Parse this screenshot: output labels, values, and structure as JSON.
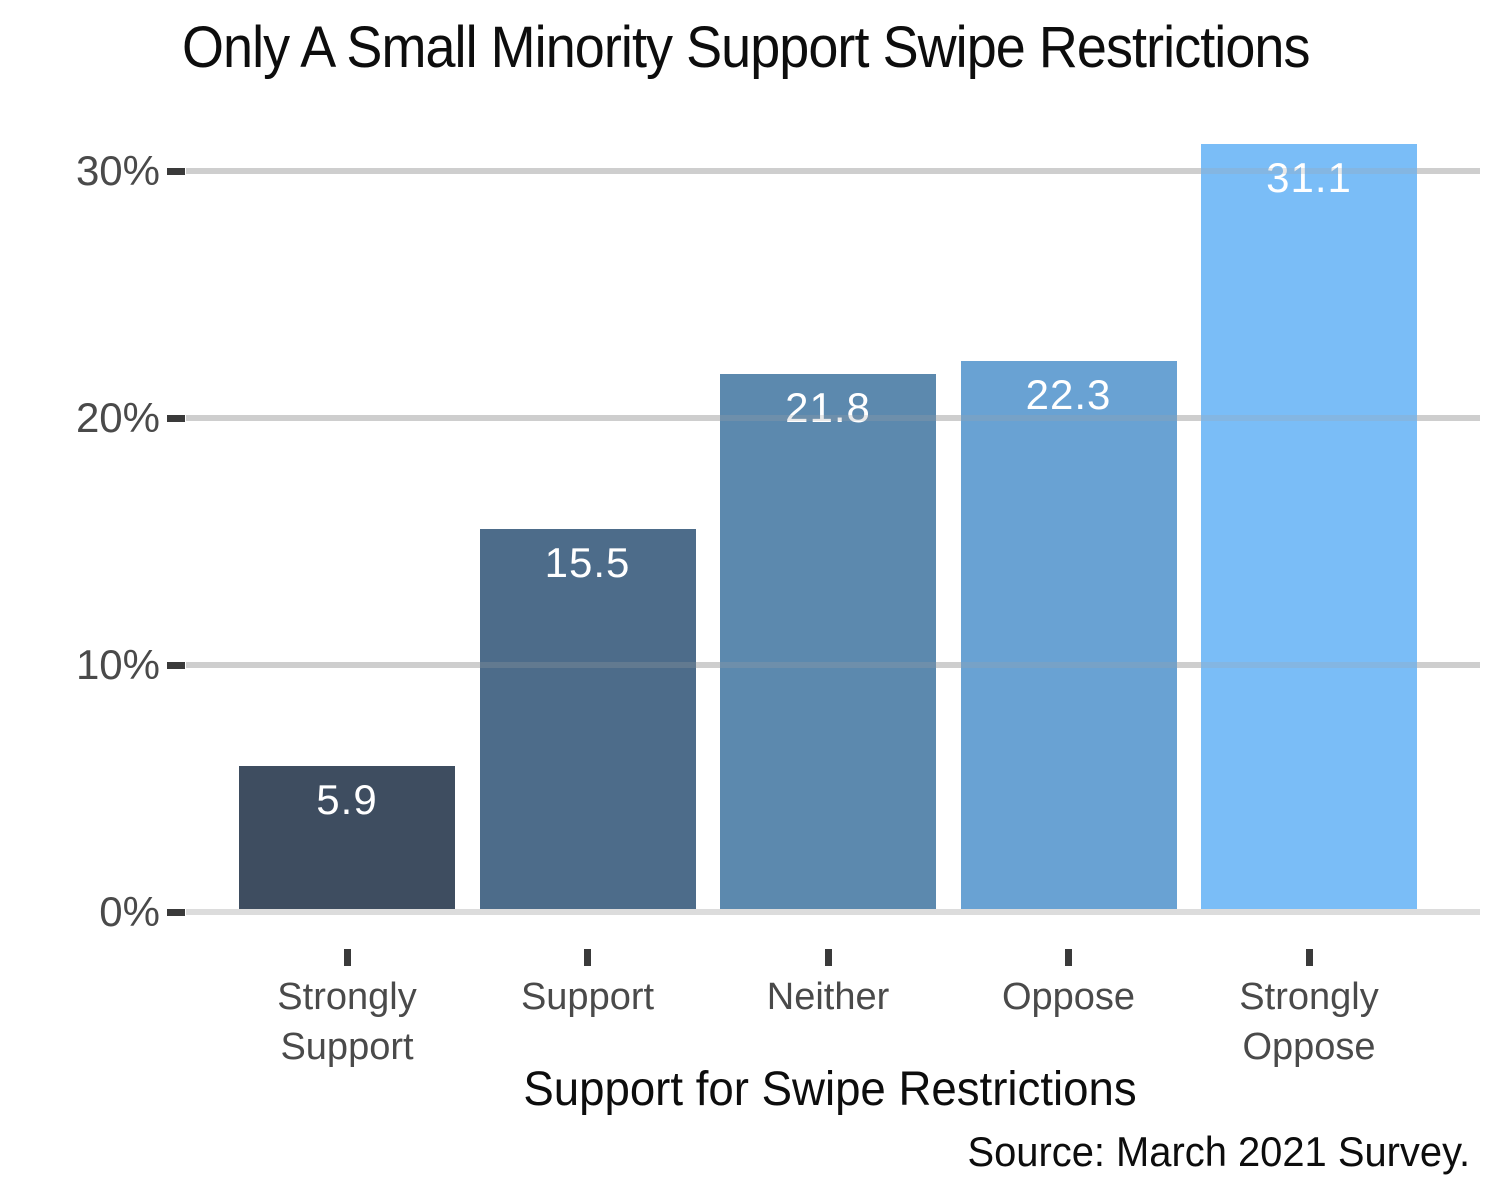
{
  "chart_data": {
    "type": "bar",
    "title": "Only A Small Minority Support Swipe Restrictions",
    "categories": [
      "Strongly Support",
      "Support",
      "Neither",
      "Oppose",
      "Strongly Oppose"
    ],
    "values": [
      5.9,
      15.5,
      21.8,
      22.3,
      31.1
    ],
    "bar_labels": [
      "5.9",
      "15.5",
      "21.8",
      "22.3",
      "31.1"
    ],
    "bar_colors": [
      "#3e4d60",
      "#4d6c8a",
      "#5c89ae",
      "#69a2d3",
      "#7abdf7"
    ],
    "xlabel": "Support for Swipe Restrictions",
    "ylabel": "",
    "source": "Source: March 2021 Survey.",
    "y_ticks": [
      {
        "value": 0,
        "label": "0%"
      },
      {
        "value": 10,
        "label": "10%"
      },
      {
        "value": 20,
        "label": "20%"
      },
      {
        "value": 30,
        "label": "30%"
      }
    ],
    "ylim": [
      0,
      31.1
    ],
    "grid": true,
    "legend": false,
    "colors": {
      "background": "#ffffff",
      "grid": "#dcdcdc",
      "tick": "#3a3a3a",
      "axis_label": "#4a4a4a",
      "title": "#0d0d0d",
      "value_label": "#ffffff"
    }
  }
}
